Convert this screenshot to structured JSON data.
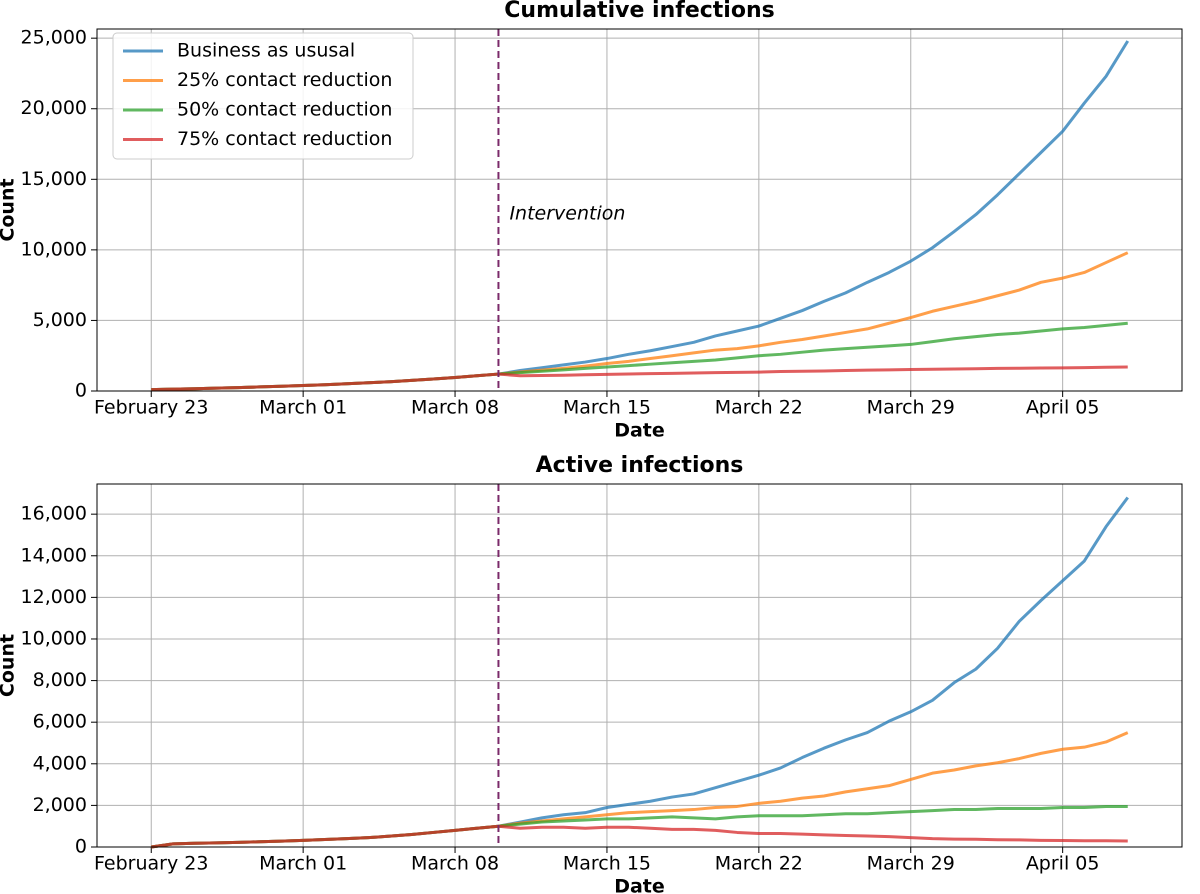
{
  "chart_data": [
    {
      "type": "line",
      "title": "Cumulative infections",
      "xlabel": "Date",
      "ylabel": "Count",
      "x": [
        "February 23",
        "February 24",
        "February 25",
        "February 26",
        "February 27",
        "February 28",
        "February 29",
        "March 01",
        "March 02",
        "March 03",
        "March 04",
        "March 05",
        "March 06",
        "March 07",
        "March 08",
        "March 09",
        "March 10",
        "March 11",
        "March 12",
        "March 13",
        "March 14",
        "March 15",
        "March 16",
        "March 17",
        "March 18",
        "March 19",
        "March 20",
        "March 21",
        "March 22",
        "March 23",
        "March 24",
        "March 25",
        "March 26",
        "March 27",
        "March 28",
        "March 29",
        "March 30",
        "March 31",
        "April 01",
        "April 02",
        "April 03",
        "April 04",
        "April 05",
        "April 06",
        "April 07",
        "April 08"
      ],
      "xticks": [
        "February 23",
        "March 01",
        "March 08",
        "March 15",
        "March 22",
        "March 29",
        "April 05"
      ],
      "ylim": [
        0,
        25650
      ],
      "yticks": [
        0,
        {
          "value": 5000,
          "label": "5,000"
        },
        {
          "value": 10000,
          "label": "10,000"
        },
        {
          "value": 15000,
          "label": "15,000"
        },
        {
          "value": 20000,
          "label": "20,000"
        },
        {
          "value": 25000,
          "label": "25,000"
        }
      ],
      "grid": true,
      "legend": "upper left",
      "intervention": {
        "x": "March 10",
        "label": "Intervention",
        "color": "#7b2a6a"
      },
      "series": [
        {
          "name": "Business as ususal",
          "color": "#1f77b4",
          "values": [
            100,
            130,
            160,
            200,
            240,
            290,
            340,
            390,
            440,
            510,
            580,
            660,
            750,
            850,
            960,
            1080,
            1200,
            1450,
            1650,
            1850,
            2050,
            2300,
            2600,
            2850,
            3150,
            3450,
            3900,
            4250,
            4600,
            5150,
            5700,
            6350,
            6950,
            7700,
            8400,
            9200,
            10150,
            11300,
            12500,
            13900,
            15400,
            16900,
            18400,
            20400,
            22300,
            24800
          ]
        },
        {
          "name": "25% contact reduction",
          "color": "#ff7f0e",
          "values": [
            100,
            130,
            160,
            200,
            240,
            290,
            340,
            390,
            440,
            510,
            580,
            660,
            750,
            850,
            960,
            1080,
            1200,
            1350,
            1480,
            1600,
            1760,
            1950,
            2100,
            2300,
            2500,
            2700,
            2900,
            3000,
            3200,
            3450,
            3650,
            3900,
            4150,
            4400,
            4800,
            5200,
            5650,
            6000,
            6350,
            6750,
            7150,
            7700,
            8000,
            8400,
            9100,
            9800
          ]
        },
        {
          "name": "50% contact reduction",
          "color": "#2ca02c",
          "values": [
            100,
            130,
            160,
            200,
            240,
            290,
            340,
            390,
            440,
            510,
            580,
            660,
            750,
            850,
            960,
            1080,
            1200,
            1300,
            1400,
            1500,
            1600,
            1700,
            1800,
            1900,
            2000,
            2100,
            2200,
            2350,
            2500,
            2600,
            2750,
            2900,
            3000,
            3100,
            3200,
            3300,
            3500,
            3700,
            3850,
            4000,
            4100,
            4250,
            4400,
            4500,
            4650,
            4800
          ]
        },
        {
          "name": "75% contact reduction",
          "color": "#d62728",
          "values": [
            100,
            130,
            160,
            200,
            240,
            290,
            340,
            390,
            440,
            510,
            580,
            660,
            750,
            850,
            960,
            1080,
            1200,
            1080,
            1100,
            1120,
            1150,
            1180,
            1200,
            1230,
            1250,
            1280,
            1300,
            1320,
            1340,
            1380,
            1400,
            1420,
            1450,
            1480,
            1500,
            1520,
            1540,
            1560,
            1580,
            1600,
            1610,
            1630,
            1640,
            1660,
            1680,
            1700
          ]
        }
      ]
    },
    {
      "type": "line",
      "title": "Active infections",
      "xlabel": "Date",
      "ylabel": "Count",
      "x": [
        "February 23",
        "February 24",
        "February 25",
        "February 26",
        "February 27",
        "February 28",
        "February 29",
        "March 01",
        "March 02",
        "March 03",
        "March 04",
        "March 05",
        "March 06",
        "March 07",
        "March 08",
        "March 09",
        "March 10",
        "March 11",
        "March 12",
        "March 13",
        "March 14",
        "March 15",
        "March 16",
        "March 17",
        "March 18",
        "March 19",
        "March 20",
        "March 21",
        "March 22",
        "March 23",
        "March 24",
        "March 25",
        "March 26",
        "March 27",
        "March 28",
        "March 29",
        "March 30",
        "March 31",
        "April 01",
        "April 02",
        "April 03",
        "April 04",
        "April 05",
        "April 06",
        "April 07",
        "April 08"
      ],
      "xticks": [
        "February 23",
        "March 01",
        "March 08",
        "March 15",
        "March 22",
        "March 29",
        "April 05"
      ],
      "ylim": [
        0,
        17450
      ],
      "yticks": [
        0,
        {
          "value": 2000,
          "label": "2,000"
        },
        {
          "value": 4000,
          "label": "4,000"
        },
        {
          "value": 6000,
          "label": "6,000"
        },
        {
          "value": 8000,
          "label": "8,000"
        },
        {
          "value": 10000,
          "label": "10,000"
        },
        {
          "value": 12000,
          "label": "12,000"
        },
        {
          "value": 14000,
          "label": "14,000"
        },
        {
          "value": 16000,
          "label": "16,000"
        }
      ],
      "grid": true,
      "intervention": {
        "x": "March 10",
        "color": "#7b2a6a"
      },
      "series": [
        {
          "color": "#1f77b4",
          "values": [
            0,
            150,
            180,
            200,
            220,
            250,
            280,
            320,
            360,
            400,
            450,
            520,
            600,
            700,
            800,
            900,
            1000,
            1200,
            1400,
            1550,
            1650,
            1900,
            2050,
            2200,
            2400,
            2550,
            2850,
            3150,
            3450,
            3800,
            4300,
            4750,
            5150,
            5500,
            6050,
            6500,
            7050,
            7900,
            8550,
            9550,
            10850,
            11850,
            12800,
            13750,
            15400,
            16800
          ]
        },
        {
          "color": "#ff7f0e",
          "values": [
            0,
            150,
            180,
            200,
            220,
            250,
            280,
            320,
            360,
            400,
            450,
            520,
            600,
            700,
            800,
            900,
            1000,
            1150,
            1250,
            1350,
            1450,
            1550,
            1650,
            1700,
            1750,
            1800,
            1900,
            1950,
            2100,
            2200,
            2350,
            2450,
            2650,
            2800,
            2950,
            3250,
            3550,
            3700,
            3900,
            4050,
            4250,
            4500,
            4700,
            4800,
            5050,
            5500
          ]
        },
        {
          "color": "#2ca02c",
          "values": [
            0,
            150,
            180,
            200,
            220,
            250,
            280,
            320,
            360,
            400,
            450,
            520,
            600,
            700,
            800,
            900,
            1000,
            1100,
            1200,
            1250,
            1300,
            1350,
            1350,
            1400,
            1450,
            1400,
            1350,
            1450,
            1500,
            1500,
            1500,
            1550,
            1600,
            1600,
            1650,
            1700,
            1750,
            1800,
            1800,
            1850,
            1850,
            1850,
            1900,
            1900,
            1950,
            1950
          ]
        },
        {
          "color": "#d62728",
          "values": [
            0,
            150,
            180,
            200,
            220,
            250,
            280,
            320,
            360,
            400,
            450,
            520,
            600,
            700,
            800,
            900,
            1000,
            900,
            950,
            950,
            900,
            950,
            950,
            900,
            850,
            850,
            800,
            700,
            650,
            650,
            620,
            580,
            550,
            530,
            500,
            450,
            400,
            380,
            370,
            350,
            340,
            320,
            310,
            300,
            300,
            290
          ]
        }
      ]
    }
  ]
}
